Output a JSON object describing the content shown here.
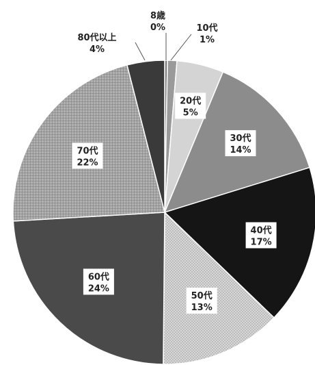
{
  "chart_data": {
    "type": "pie",
    "title": "",
    "start_angle_deg": 0,
    "direction": "clockwise",
    "slices": [
      {
        "category": "8歳",
        "percent_label": "0%",
        "value": 0.3,
        "color": "#7a7a7a",
        "pattern": "solid"
      },
      {
        "category": "10代",
        "percent_label": "1%",
        "value": 1,
        "color": "#9a9a9a",
        "pattern": "solid"
      },
      {
        "category": "20代",
        "percent_label": "5%",
        "value": 5,
        "color": "#d4d4d4",
        "pattern": "solid"
      },
      {
        "category": "30代",
        "percent_label": "14%",
        "value": 14,
        "color": "#8c8c8c",
        "pattern": "solid"
      },
      {
        "category": "40代",
        "percent_label": "17%",
        "value": 17,
        "color": "#151515",
        "pattern": "solid"
      },
      {
        "category": "50代",
        "percent_label": "13%",
        "value": 13,
        "color": "#cfcfcf",
        "pattern": "dots"
      },
      {
        "category": "60代",
        "percent_label": "24%",
        "value": 24,
        "color": "#4a4a4a",
        "pattern": "solid"
      },
      {
        "category": "70代",
        "percent_label": "22%",
        "value": 22,
        "color": "#9e9e9e",
        "pattern": "grid"
      },
      {
        "category": "80代以上",
        "percent_label": "4%",
        "value": 4,
        "color": "#3a3a3a",
        "pattern": "solid"
      }
    ]
  }
}
